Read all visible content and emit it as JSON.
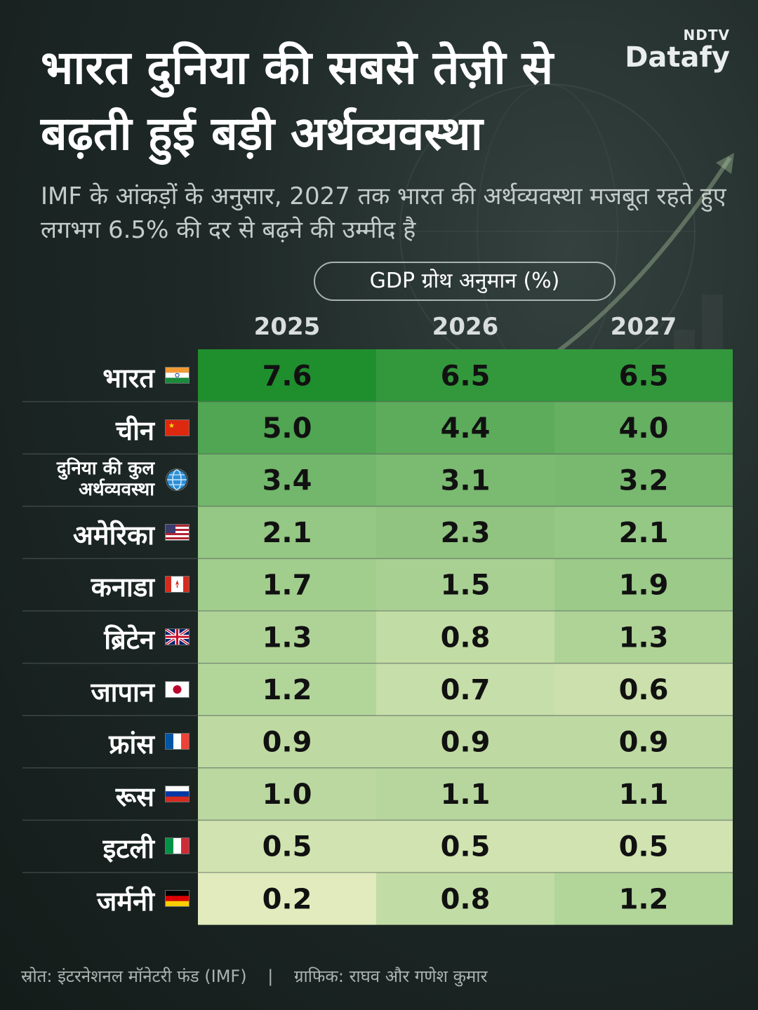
{
  "header": {
    "title": "भारत दुनिया की सबसे तेज़ी से बढ़ती हुई बड़ी अर्थव्यवस्था",
    "subtitle": "IMF के आंकड़ों के अनुसार, 2027 तक भारत की अर्थव्यवस्था मजबूत रहते हुए लगभग 6.5% की दर से बढ़ने की उम्मीद है",
    "logo_top": "NDTV",
    "logo_main": "Datafy"
  },
  "table_label": "GDP ग्रोथ अनुमान (%)",
  "footer": {
    "source": "स्रोत: इंटरनेशनल मॉनेटरी फंड (IMF)",
    "separator": "|",
    "credit": "ग्राफिक: राघव और गणेश कुमार"
  },
  "chart_data": {
    "type": "table",
    "title": "GDP ग्रोथ अनुमान (%)",
    "columns": [
      "2025",
      "2026",
      "2027"
    ],
    "rows": [
      {
        "label": "भारत",
        "flag": "india-flag",
        "values": [
          7.6,
          6.5,
          6.5
        ]
      },
      {
        "label": "चीन",
        "flag": "china-flag",
        "values": [
          5.0,
          4.4,
          4.0
        ]
      },
      {
        "label": "दुनिया की कुल अर्थव्यवस्था",
        "flag": "globe-icon",
        "values": [
          3.4,
          3.1,
          3.2
        ]
      },
      {
        "label": "अमेरिका",
        "flag": "usa-flag",
        "values": [
          2.1,
          2.3,
          2.1
        ]
      },
      {
        "label": "कनाडा",
        "flag": "canada-flag",
        "values": [
          1.7,
          1.5,
          1.9
        ]
      },
      {
        "label": "ब्रिटेन",
        "flag": "uk-flag",
        "values": [
          1.3,
          0.8,
          1.3
        ]
      },
      {
        "label": "जापान",
        "flag": "japan-flag",
        "values": [
          1.2,
          0.7,
          0.6
        ]
      },
      {
        "label": "फ्रांस",
        "flag": "france-flag",
        "values": [
          0.9,
          0.9,
          0.9
        ]
      },
      {
        "label": "रूस",
        "flag": "russia-flag",
        "values": [
          1.0,
          1.1,
          1.1
        ]
      },
      {
        "label": "इटली",
        "flag": "italy-flag",
        "values": [
          0.5,
          0.5,
          0.5
        ]
      },
      {
        "label": "जर्मनी",
        "flag": "germany-flag",
        "values": [
          0.2,
          0.8,
          1.2
        ]
      }
    ],
    "color_scale": {
      "low": "#fbf7cf",
      "high": "#1f8f2e"
    }
  }
}
